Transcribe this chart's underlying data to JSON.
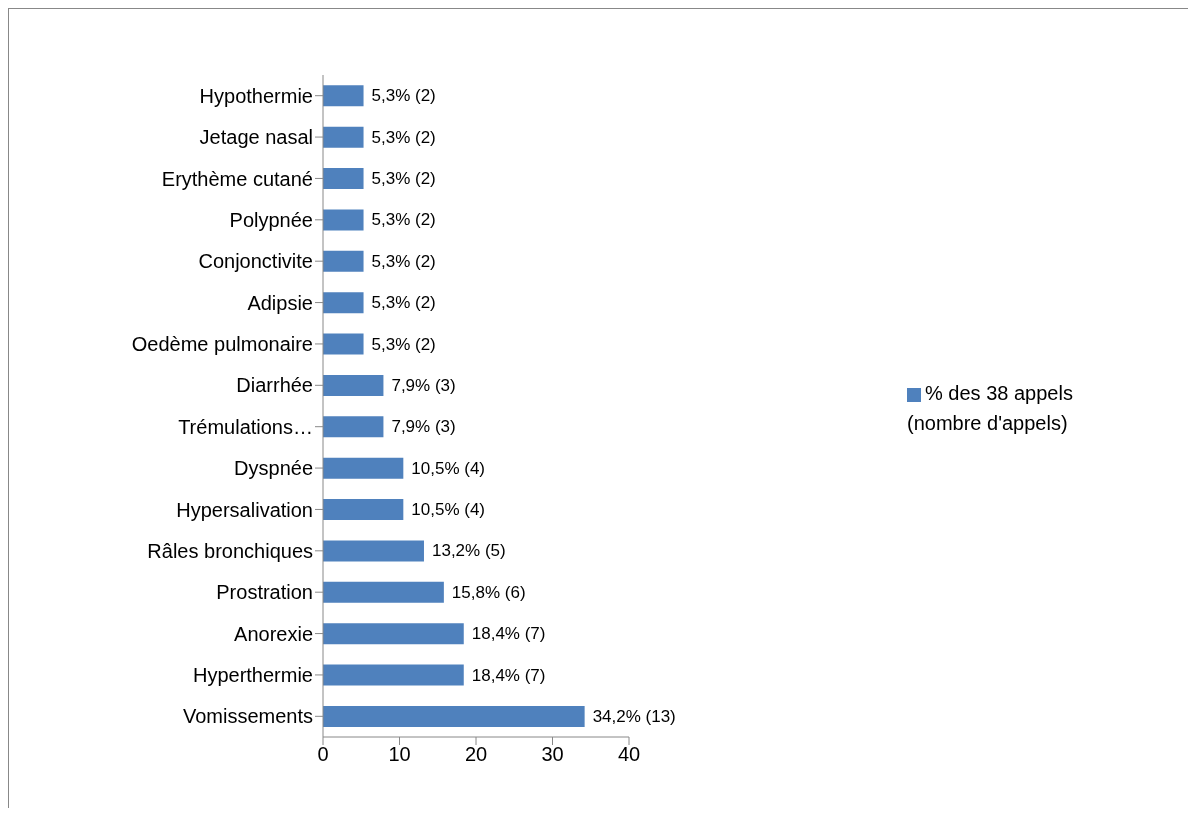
{
  "chart_data": {
    "type": "bar",
    "orientation": "horizontal",
    "categories": [
      "Hypothermie",
      "Jetage nasal",
      "Erythème cutané",
      "Polypnée",
      "Conjonctivite",
      "Adipsie",
      "Oedème pulmonaire",
      "Diarrhée",
      "Trémulations…",
      "Dyspnée",
      "Hypersalivation",
      "Râles bronchiques",
      "Prostration",
      "Anorexie",
      "Hyperthermie",
      "Vomissements"
    ],
    "series": [
      {
        "name": "% des 38 appels (nombre d'appels)",
        "color": "#4f81bd",
        "values": [
          5.3,
          5.3,
          5.3,
          5.3,
          5.3,
          5.3,
          5.3,
          7.9,
          7.9,
          10.5,
          10.5,
          13.2,
          15.8,
          18.4,
          18.4,
          34.2
        ],
        "value_labels": [
          "5,3% (2)",
          "5,3% (2)",
          "5,3% (2)",
          "5,3% (2)",
          "5,3% (2)",
          "5,3% (2)",
          "5,3% (2)",
          "7,9% (3)",
          "7,9% (3)",
          "10,5% (4)",
          "10,5% (4)",
          "13,2% (5)",
          "15,8% (6)",
          "18,4% (7)",
          "18,4% (7)",
          "34,2% (13)"
        ]
      }
    ],
    "xlim": [
      0,
      40
    ],
    "xticks": [
      0,
      10,
      20,
      30,
      40
    ],
    "grid": false,
    "legend": "right"
  }
}
